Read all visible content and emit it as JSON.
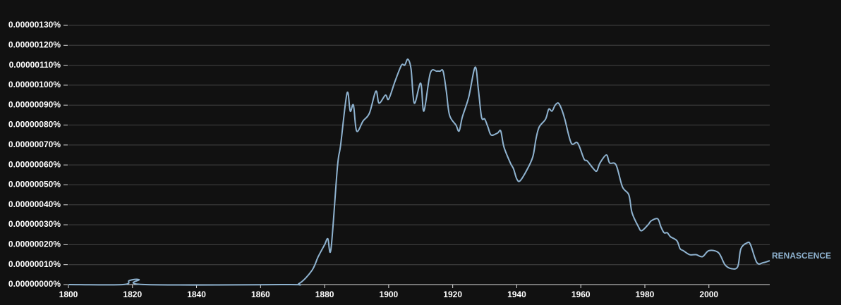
{
  "chart_data": {
    "type": "line",
    "x": [
      1800,
      1817,
      1819,
      1822,
      1824,
      1868,
      1872,
      1876,
      1878,
      1880,
      1881,
      1882,
      1884,
      1885,
      1887,
      1888,
      1889,
      1890,
      1892,
      1894,
      1896,
      1897,
      1899,
      1900,
      1902,
      1904,
      1905,
      1906,
      1907,
      1908,
      1910,
      1911,
      1913,
      1915,
      1916,
      1917,
      1918,
      1919,
      1921,
      1922,
      1923,
      1925,
      1927,
      1928,
      1929,
      1930,
      1931,
      1932,
      1934,
      1935,
      1936,
      1938,
      1939,
      1940,
      1941,
      1943,
      1945,
      1946,
      1947,
      1949,
      1950,
      1951,
      1952,
      1953,
      1954,
      1955,
      1957,
      1959,
      1961,
      1962,
      1964,
      1965,
      1966,
      1968,
      1969,
      1971,
      1973,
      1975,
      1976,
      1978,
      1979,
      1981,
      1982,
      1984,
      1985,
      1986,
      1987,
      1988,
      1990,
      1991,
      1992,
      1994,
      1996,
      1998,
      2000,
      2003,
      2005,
      2007,
      2009,
      2010,
      2012,
      2013,
      2015,
      2017,
      2019
    ],
    "series": [
      {
        "name": "RENASCENCE",
        "color": "#8fb3d0",
        "values": [
          0,
          0,
          2e-08,
          2.5e-08,
          0,
          0,
          5e-09,
          7e-08,
          1.4e-07,
          2e-07,
          2.3e-07,
          1.8e-07,
          5.9e-07,
          7e-07,
          9.6e-07,
          8.7e-07,
          9e-07,
          7.7e-07,
          8.2e-07,
          8.6e-07,
          9.7e-07,
          9.1e-07,
          9.5e-07,
          9.3e-07,
          1.02e-06,
          1.1e-06,
          1.1e-06,
          1.13e-06,
          1.08e-06,
          9.1e-07,
          1.01e-06,
          8.7e-07,
          1.06e-06,
          1.07e-06,
          1.07e-06,
          1.07e-06,
          9.7e-07,
          8.5e-07,
          8e-07,
          7.7e-07,
          8.4e-07,
          9.4e-07,
          1.09e-06,
          9.8e-07,
          8.4e-07,
          8.3e-07,
          7.9e-07,
          7.5e-07,
          7.6e-07,
          7.7e-07,
          6.9e-07,
          6.1e-07,
          5.8e-07,
          5.3e-07,
          5.2e-07,
          5.7e-07,
          6.4e-07,
          7.3e-07,
          7.9e-07,
          8.3e-07,
          8.8e-07,
          8.7e-07,
          9e-07,
          9.1e-07,
          8.8e-07,
          8.3e-07,
          7.1e-07,
          7.1e-07,
          6.3e-07,
          6.2e-07,
          5.8e-07,
          5.7e-07,
          6.1e-07,
          6.5e-07,
          6.1e-07,
          6e-07,
          4.9e-07,
          4.5e-07,
          3.6e-07,
          2.9e-07,
          2.7e-07,
          3e-07,
          3.2e-07,
          3.3e-07,
          2.9e-07,
          2.6e-07,
          2.6e-07,
          2.4e-07,
          2.2e-07,
          1.8e-07,
          1.7e-07,
          1.5e-07,
          1.5e-07,
          1.4e-07,
          1.7e-07,
          1.6e-07,
          1e-07,
          8e-08,
          9e-08,
          1.8e-07,
          2.1e-07,
          2e-07,
          1.1e-07,
          1.1e-07,
          1.2e-07
        ]
      }
    ],
    "xlim": [
      1800,
      2019
    ],
    "xticks": [
      1800,
      1820,
      1840,
      1860,
      1880,
      1900,
      1920,
      1940,
      1960,
      1980,
      2000
    ],
    "ylim": [
      0,
      1.3e-06
    ],
    "yticks": [
      {
        "value": 0,
        "label": "0.00000000%"
      },
      {
        "value": 1e-07,
        "label": "0.00000010%"
      },
      {
        "value": 2e-07,
        "label": "0.00000020%"
      },
      {
        "value": 3e-07,
        "label": "0.00000030%"
      },
      {
        "value": 4e-07,
        "label": "0.00000040%"
      },
      {
        "value": 5e-07,
        "label": "0.00000050%"
      },
      {
        "value": 6e-07,
        "label": "0.00000060%"
      },
      {
        "value": 7e-07,
        "label": "0.00000070%"
      },
      {
        "value": 8e-07,
        "label": "0.00000080%"
      },
      {
        "value": 9e-07,
        "label": "0.00000090%"
      },
      {
        "value": 1e-06,
        "label": "0.00000100%"
      },
      {
        "value": 1.1e-06,
        "label": "0.00000110%"
      },
      {
        "value": 1.2e-06,
        "label": "0.00000120%"
      },
      {
        "value": 1.3e-06,
        "label": "0.00000130%"
      }
    ],
    "grid": true
  }
}
